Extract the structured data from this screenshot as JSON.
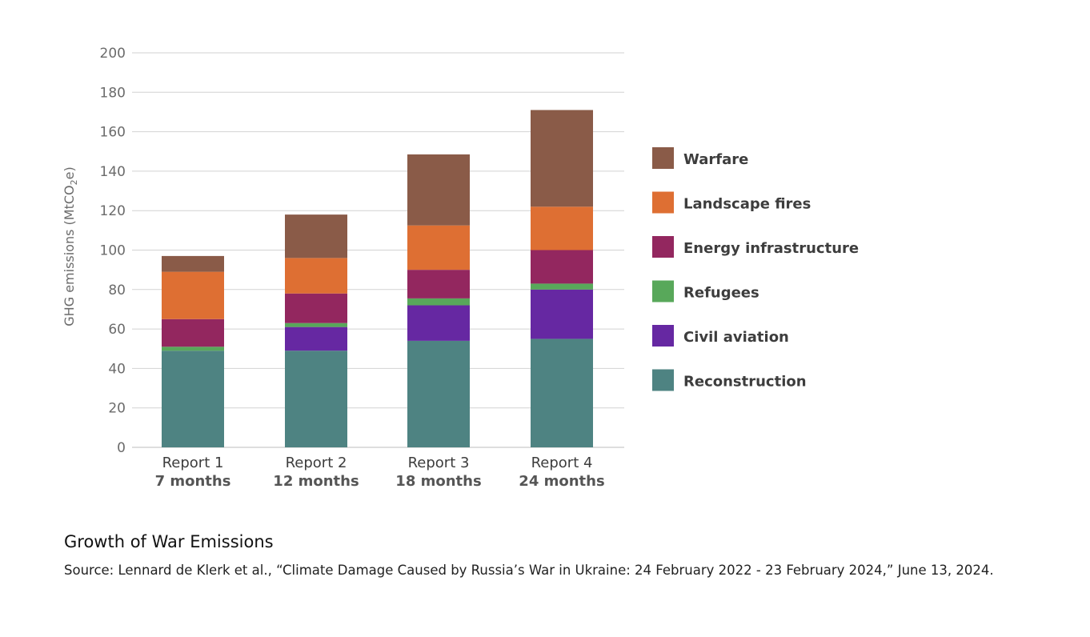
{
  "chart_data": {
    "type": "bar",
    "stacked": true,
    "ylabel": "GHG emissions (MtCO2e)",
    "ylabel_parts": {
      "pre": "GHG emissions (MtCO",
      "sub": "2",
      "post": "e)"
    },
    "ylim": [
      0,
      200
    ],
    "yticks": [
      "0",
      "20",
      "40",
      "60",
      "80",
      "100",
      "120",
      "140",
      "160",
      "180",
      "200"
    ],
    "grid": true,
    "legend_position": "right",
    "categories": [
      {
        "line1": "Report 1",
        "line2": "7 months"
      },
      {
        "line1": "Report 2",
        "line2": "12 months"
      },
      {
        "line1": "Report 3",
        "line2": "18 months"
      },
      {
        "line1": "Report 4",
        "line2": "24 months"
      }
    ],
    "series": [
      {
        "name": "Reconstruction",
        "color": "#4e8382",
        "values": [
          49,
          49,
          54,
          55
        ]
      },
      {
        "name": "Civil aviation",
        "color": "#6628a2",
        "values": [
          0,
          12,
          18,
          25
        ]
      },
      {
        "name": "Refugees",
        "color": "#58a85a",
        "values": [
          2,
          2,
          3.5,
          3
        ]
      },
      {
        "name": "Energy infrastructure",
        "color": "#93275f",
        "values": [
          14,
          15,
          14.5,
          17
        ]
      },
      {
        "name": "Landscape fires",
        "color": "#de6f33",
        "values": [
          24,
          18,
          22.5,
          22
        ]
      },
      {
        "name": "Warfare",
        "color": "#8a5b48",
        "values": [
          8,
          22,
          36,
          49
        ]
      }
    ]
  },
  "caption": {
    "title": "Growth of War Emissions",
    "source": "Source:  Lennard de Klerk et al., “Climate Damage Caused by Russia’s War in Ukraine: 24 February 2022 - 23 February 2024,” June 13, 2024."
  }
}
